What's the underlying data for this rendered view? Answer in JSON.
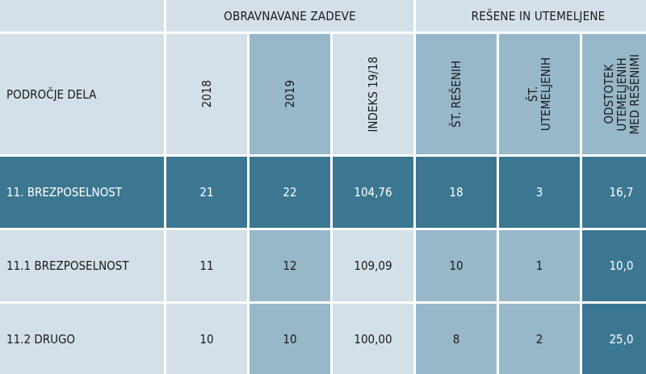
{
  "group_headers": {
    "handled": "OBRAVNAVANE ZADEVE",
    "resolved": "REŠENE IN UTEMELJENE"
  },
  "column_headers": {
    "area": "PODROČJE DELA",
    "y2018": "2018",
    "y2019": "2019",
    "index": "INDEKS 19/18",
    "resolved_count": "ŠT. REŠENIH",
    "justified_count": "ŠT.\nUTEMELJENIH",
    "percent": "ODSTOTEK\nUTEMELJENIH\nMED REŠENIMI"
  },
  "rows": [
    {
      "area": "11. BREZPOSELNOST",
      "y2018": "21",
      "y2019": "22",
      "index": "104,76",
      "resolved": "18",
      "justified": "3",
      "percent": "16,7"
    },
    {
      "area": "11.1 BREZPOSELNOST",
      "y2018": "11",
      "y2019": "12",
      "index": "109,09",
      "resolved": "10",
      "justified": "1",
      "percent": "10,0"
    },
    {
      "area": "11.2 DRUGO",
      "y2018": "10",
      "y2019": "10",
      "index": "100,00",
      "resolved": "8",
      "justified": "2",
      "percent": "25,0"
    }
  ],
  "colors": {
    "light": "#d3e0e8",
    "mid": "#97b8c9",
    "dark": "#3c7791"
  }
}
